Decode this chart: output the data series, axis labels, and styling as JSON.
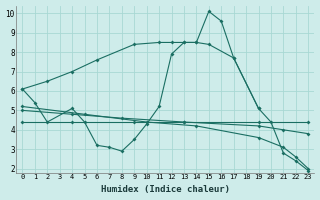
{
  "xlabel": "Humidex (Indice chaleur)",
  "bg_color": "#ceecea",
  "grid_color": "#a8d8d4",
  "line_color": "#1a6e62",
  "xlim": [
    -0.5,
    23.5
  ],
  "ylim": [
    1.8,
    10.4
  ],
  "yticks": [
    2,
    3,
    4,
    5,
    6,
    7,
    8,
    9,
    10
  ],
  "xticks": [
    0,
    1,
    2,
    3,
    4,
    5,
    6,
    7,
    8,
    9,
    10,
    11,
    12,
    13,
    14,
    15,
    16,
    17,
    18,
    19,
    20,
    21,
    22,
    23
  ],
  "curve1_x": [
    0,
    1,
    2,
    4,
    5,
    6,
    7,
    8,
    9,
    10,
    11,
    12,
    13,
    14,
    15,
    16,
    17,
    19,
    20,
    21,
    22,
    23
  ],
  "curve1_y": [
    6.1,
    5.4,
    4.4,
    5.1,
    4.4,
    3.2,
    3.1,
    2.9,
    3.5,
    4.3,
    5.2,
    7.9,
    8.5,
    8.5,
    10.1,
    9.6,
    7.7,
    5.1,
    4.4,
    2.8,
    2.4,
    1.9
  ],
  "curve2_x": [
    0,
    2,
    4,
    6,
    9,
    11,
    12,
    13,
    14,
    15,
    17,
    19
  ],
  "curve2_y": [
    6.1,
    6.5,
    7.0,
    7.6,
    8.4,
    8.5,
    8.5,
    8.5,
    8.5,
    8.4,
    7.7,
    5.1
  ],
  "curve3_x": [
    0,
    4,
    9,
    13,
    19,
    23
  ],
  "curve3_y": [
    4.4,
    4.4,
    4.4,
    4.4,
    4.4,
    4.4
  ],
  "curve4_x": [
    0,
    4,
    8,
    13,
    19,
    21,
    23
  ],
  "curve4_y": [
    5.0,
    4.8,
    4.6,
    4.4,
    4.2,
    4.0,
    3.8
  ],
  "curve5_x": [
    0,
    5,
    10,
    14,
    19,
    21,
    22,
    23
  ],
  "curve5_y": [
    5.2,
    4.8,
    4.4,
    4.2,
    3.6,
    3.1,
    2.6,
    2.0
  ]
}
